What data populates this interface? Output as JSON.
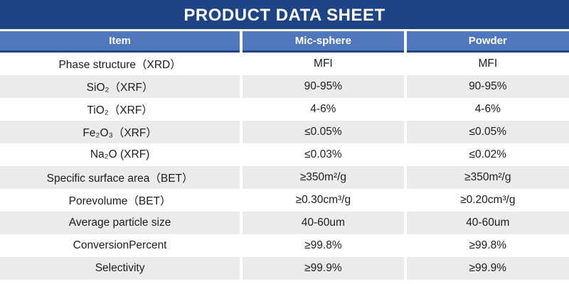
{
  "title": "PRODUCT DATA SHEET",
  "colors": {
    "title_bar_bg": "#1d4487",
    "column_header_bg": "#4e77bd",
    "header_text": "#ffffff",
    "stripe_row_bg": "#ebebeb",
    "body_text": "#1c1c1c"
  },
  "table": {
    "columns": [
      "Item",
      "Mic-sphere",
      "Powder"
    ],
    "rows": [
      {
        "item": "Phase structure（XRD）",
        "mic_sphere": "MFI",
        "powder": "MFI"
      },
      {
        "item": "SiO₂（XRF）",
        "mic_sphere": "90-95%",
        "powder": "90-95%"
      },
      {
        "item": "TiO₂（XRF）",
        "mic_sphere": "4-6%",
        "powder": "4-6%"
      },
      {
        "item": "Fe₂O₃（XRF）",
        "mic_sphere": "≤0.05%",
        "powder": "≤0.05%"
      },
      {
        "item": "Na₂O (XRF)",
        "mic_sphere": "≤0.03%",
        "powder": "≤0.02%"
      },
      {
        "item": "Specific surface area（BET）",
        "mic_sphere": "≥350m²/g",
        "powder": "≥350m²/g"
      },
      {
        "item": "Porevolume（BET）",
        "mic_sphere": "≥0.30cm³/g",
        "powder": "≥0.20cm³/g"
      },
      {
        "item": "Average particle size",
        "mic_sphere": "40-60um",
        "powder": "40-60um"
      },
      {
        "item": "ConversionPercent",
        "mic_sphere": "≥99.8%",
        "powder": "≥99.8%"
      },
      {
        "item": "Selectivity",
        "mic_sphere": "≥99.9%",
        "powder": "≥99.9%"
      }
    ]
  }
}
